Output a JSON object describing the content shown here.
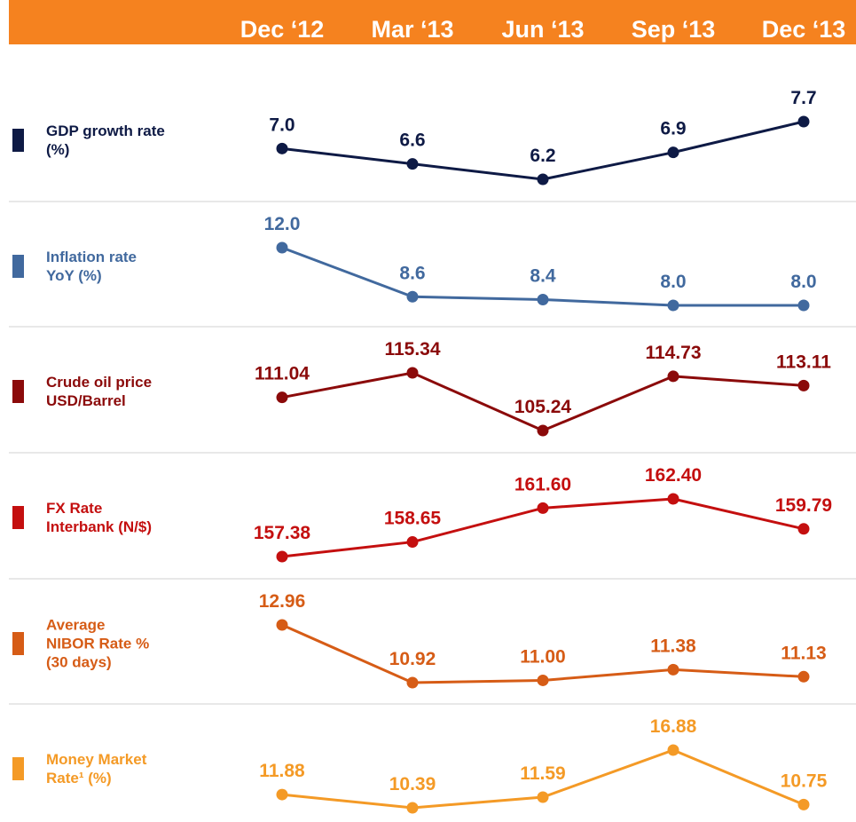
{
  "chart_data": {
    "type": "line",
    "categories": [
      "Dec ‘12",
      "Mar ‘13",
      "Jun ‘13",
      "Sep ‘13",
      "Dec ‘13"
    ],
    "series": [
      {
        "name": "GDP growth rate\n(%)",
        "color": "#0e1a45",
        "values": [
          7.0,
          6.6,
          6.2,
          6.9,
          7.7
        ],
        "value_labels": [
          "7.0",
          "6.6",
          "6.2",
          "6.9",
          "7.7"
        ]
      },
      {
        "name": "Inflation rate\nYoY  (%)",
        "color": "#41699e",
        "values": [
          12.0,
          8.6,
          8.4,
          8.0,
          8.0
        ],
        "value_labels": [
          "12.0",
          "8.6",
          "8.4",
          "8.0",
          "8.0"
        ]
      },
      {
        "name": "Crude oil price\nUSD/Barrel",
        "color": "#8b0a0a",
        "values": [
          111.04,
          115.34,
          105.24,
          114.73,
          113.11
        ],
        "value_labels": [
          "111.04",
          "115.34",
          "105.24",
          "114.73",
          "113.11"
        ]
      },
      {
        "name": "FX Rate\nInterbank (N/$)",
        "color": "#c40f0f",
        "values": [
          157.38,
          158.65,
          161.6,
          162.4,
          159.79
        ],
        "value_labels": [
          "157.38",
          "158.65",
          "161.60",
          "162.40",
          "159.79"
        ]
      },
      {
        "name": "Average\nNIBOR Rate %\n(30 days)",
        "color": "#d65c16",
        "values": [
          12.96,
          10.92,
          11.0,
          11.38,
          11.13
        ],
        "value_labels": [
          "12.96",
          "10.92",
          "11.00",
          "11.38",
          "11.13"
        ]
      },
      {
        "name": "Money Market\nRate¹ (%)",
        "color": "#f49a26",
        "values": [
          11.88,
          10.39,
          11.59,
          16.88,
          10.75
        ],
        "value_labels": [
          "11.88",
          "10.39",
          "11.59",
          "16.88",
          "10.75"
        ]
      }
    ]
  }
}
